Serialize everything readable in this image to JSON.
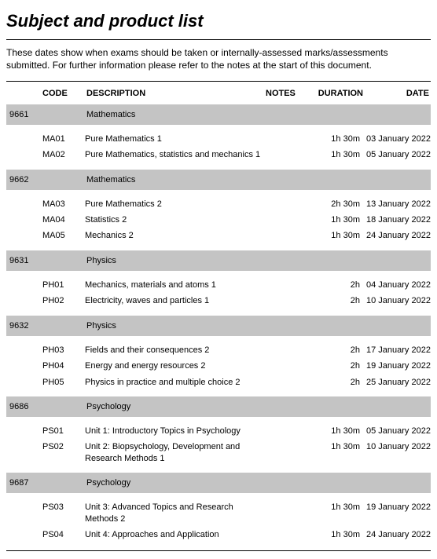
{
  "title": "Subject and product list",
  "intro": "These dates show when exams should be taken or internally-assessed marks/assessments submitted.  For further information please refer to the notes at the start of this document.",
  "headers": {
    "code": "CODE",
    "description": "DESCRIPTION",
    "notes": "NOTES",
    "duration": "DURATION",
    "date": "DATE"
  },
  "groups": [
    {
      "seq": "9661",
      "subject": "Mathematics",
      "rows": [
        {
          "code": "MA01",
          "desc": "Pure Mathematics 1",
          "notes": "",
          "dur": "1h 30m",
          "date": "03 January 2022"
        },
        {
          "code": "MA02",
          "desc": "Pure Mathematics, statistics and mechanics 1",
          "notes": "",
          "dur": "1h 30m",
          "date": "05 January 2022"
        }
      ]
    },
    {
      "seq": "9662",
      "subject": "Mathematics",
      "rows": [
        {
          "code": "MA03",
          "desc": "Pure Mathematics 2",
          "notes": "",
          "dur": "2h 30m",
          "date": "13 January 2022"
        },
        {
          "code": "MA04",
          "desc": "Statistics 2",
          "notes": "",
          "dur": "1h 30m",
          "date": "18 January 2022"
        },
        {
          "code": "MA05",
          "desc": "Mechanics 2",
          "notes": "",
          "dur": "1h 30m",
          "date": "24 January 2022"
        }
      ]
    },
    {
      "seq": "9631",
      "subject": "Physics",
      "rows": [
        {
          "code": "PH01",
          "desc": "Mechanics, materials and atoms 1",
          "notes": "",
          "dur": "2h",
          "date": "04 January 2022"
        },
        {
          "code": "PH02",
          "desc": "Electricity, waves and particles 1",
          "notes": "",
          "dur": "2h",
          "date": "10 January 2022"
        }
      ]
    },
    {
      "seq": "9632",
      "subject": "Physics",
      "rows": [
        {
          "code": "PH03",
          "desc": "Fields and their consequences 2",
          "notes": "",
          "dur": "2h",
          "date": "17 January 2022"
        },
        {
          "code": "PH04",
          "desc": "Energy and energy resources 2",
          "notes": "",
          "dur": "2h",
          "date": "19 January 2022"
        },
        {
          "code": "PH05",
          "desc": "Physics in practice and multiple choice 2",
          "notes": "",
          "dur": "2h",
          "date": "25 January 2022"
        }
      ]
    },
    {
      "seq": "9686",
      "subject": "Psychology",
      "rows": [
        {
          "code": "PS01",
          "desc": "Unit 1: Introductory Topics in Psychology",
          "notes": "",
          "dur": "1h 30m",
          "date": "05 January 2022"
        },
        {
          "code": "PS02",
          "desc": "Unit 2: Biopsychology, Development and Research Methods 1",
          "notes": "",
          "dur": "1h 30m",
          "date": "10 January 2022"
        }
      ]
    },
    {
      "seq": "9687",
      "subject": "Psychology",
      "rows": [
        {
          "code": "PS03",
          "desc": "Unit 3: Advanced Topics and Research Methods 2",
          "notes": "",
          "dur": "1h 30m",
          "date": "19 January 2022"
        },
        {
          "code": "PS04",
          "desc": "Unit 4: Approaches and Application",
          "notes": "",
          "dur": "1h 30m",
          "date": "24 January 2022"
        }
      ]
    }
  ],
  "colors": {
    "group_bg": "#c4c4c4",
    "text": "#000000",
    "background": "#ffffff"
  }
}
